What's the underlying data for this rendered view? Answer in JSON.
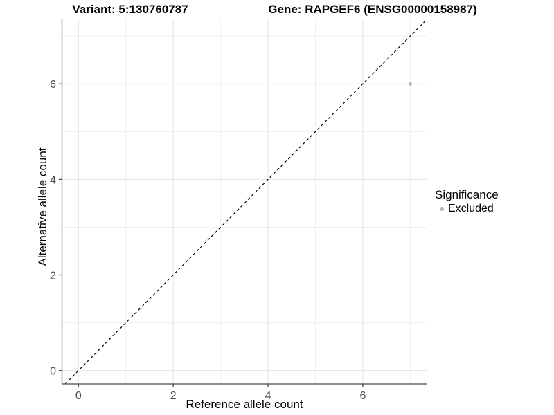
{
  "header": {
    "title_left": "Variant: 5:130760787",
    "title_right": "Gene: RAPGEF6 (ENSG00000158987)"
  },
  "chart_data": {
    "type": "scatter",
    "title": "Variant: 5:130760787  /  Gene: RAPGEF6 (ENSG00000158987)",
    "xlabel": "Reference allele count",
    "ylabel": "Alternative allele count",
    "xlim": [
      -0.34,
      7.36
    ],
    "ylim": [
      -0.28,
      7.35
    ],
    "x_major_ticks": [
      0,
      2,
      4,
      6
    ],
    "x_minor_ticks": [
      1,
      3,
      5,
      7
    ],
    "y_major_ticks": [
      0,
      2,
      4,
      6
    ],
    "y_minor_ticks": [
      1,
      3,
      5,
      7
    ],
    "grid": true,
    "series": [
      {
        "name": "Excluded",
        "color": "#b8b8b8",
        "points": [
          {
            "x": 7,
            "y": 6
          }
        ]
      }
    ],
    "reference_line": {
      "type": "identity",
      "style": "dashed",
      "color": "#000000"
    },
    "legend": {
      "position": "right",
      "title": "Significance",
      "items": [
        {
          "label": "Excluded",
          "color": "#b8b8b8"
        }
      ]
    }
  },
  "colors": {
    "background": "#ffffff",
    "grid_major": "#e3e3e3",
    "grid_minor": "#f0f0f0",
    "axis_line": "#474747",
    "tick_text": "#4d4d4d",
    "title_text": "#000000"
  }
}
